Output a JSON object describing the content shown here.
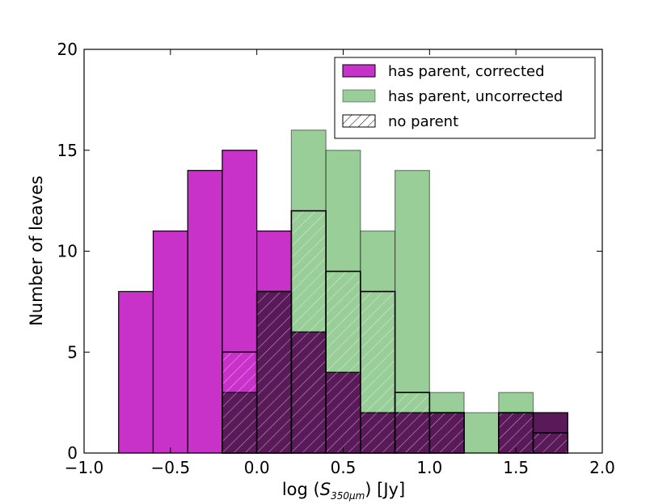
{
  "chart_data": {
    "type": "bar",
    "title": "",
    "xlabel_prefix": "log (",
    "xlabel_var": "S",
    "xlabel_sub": "350μm",
    "xlabel_suffix": ") [Jy]",
    "ylabel": "Number of leaves",
    "xlim": [
      -1.0,
      2.0
    ],
    "ylim": [
      0,
      20
    ],
    "x_ticks": [
      "−1.0",
      "−0.5",
      "0.0",
      "0.5",
      "1.0",
      "1.5",
      "2.0"
    ],
    "x_tick_values": [
      -1.0,
      -0.5,
      0.0,
      0.5,
      1.0,
      1.5,
      2.0
    ],
    "y_ticks": [
      "0",
      "5",
      "10",
      "15",
      "20"
    ],
    "y_tick_values": [
      0,
      5,
      10,
      15,
      20
    ],
    "legend_position": "top-right",
    "colors": {
      "corrected": "#c832c8",
      "uncorrected": "#7fc27f",
      "no_parent": "#5a1a5a",
      "edge": "#000000"
    },
    "series": [
      {
        "name": "has parent, corrected",
        "bins": [
          {
            "x0": -0.8,
            "x1": -0.6,
            "value": 8
          },
          {
            "x0": -0.6,
            "x1": -0.4,
            "value": 11
          },
          {
            "x0": -0.4,
            "x1": -0.2,
            "value": 14
          },
          {
            "x0": -0.2,
            "x1": 0.0,
            "value": 15
          },
          {
            "x0": 0.0,
            "x1": 0.2,
            "value": 11
          }
        ]
      },
      {
        "name": "has parent, uncorrected",
        "bins": [
          {
            "x0": -0.2,
            "x1": 0.0,
            "value": 3
          },
          {
            "x0": 0.0,
            "x1": 0.2,
            "value": 8
          },
          {
            "x0": 0.2,
            "x1": 0.4,
            "value": 16
          },
          {
            "x0": 0.4,
            "x1": 0.6,
            "value": 15
          },
          {
            "x0": 0.6,
            "x1": 0.8,
            "value": 11
          },
          {
            "x0": 0.8,
            "x1": 1.0,
            "value": 14
          },
          {
            "x0": 1.0,
            "x1": 1.2,
            "value": 3
          },
          {
            "x0": 1.2,
            "x1": 1.4,
            "value": 2
          },
          {
            "x0": 1.4,
            "x1": 1.6,
            "value": 3
          },
          {
            "x0": 1.6,
            "x1": 1.8,
            "value": 2
          }
        ]
      },
      {
        "name": "no parent",
        "bins": [
          {
            "x0": -0.2,
            "x1": 0.0,
            "value": 5
          },
          {
            "x0": 0.0,
            "x1": 0.2,
            "value": 8
          },
          {
            "x0": 0.2,
            "x1": 0.4,
            "value": 12
          },
          {
            "x0": 0.4,
            "x1": 0.6,
            "value": 9
          },
          {
            "x0": 0.6,
            "x1": 0.8,
            "value": 8
          },
          {
            "x0": 0.8,
            "x1": 1.0,
            "value": 3
          },
          {
            "x0": 1.0,
            "x1": 1.2,
            "value": 2
          },
          {
            "x0": 1.2,
            "x1": 1.4,
            "value": 0
          },
          {
            "x0": 1.4,
            "x1": 1.6,
            "value": 2
          },
          {
            "x0": 1.6,
            "x1": 1.8,
            "value": 1
          }
        ]
      }
    ],
    "dark_overlap_bins": [
      {
        "x0": -0.2,
        "x1": 0.0,
        "value": 3
      },
      {
        "x0": 0.0,
        "x1": 0.2,
        "value": 8
      },
      {
        "x0": 0.2,
        "x1": 0.4,
        "value": 6
      },
      {
        "x0": 0.4,
        "x1": 0.6,
        "value": 4
      },
      {
        "x0": 0.6,
        "x1": 0.8,
        "value": 2
      },
      {
        "x0": 0.8,
        "x1": 1.0,
        "value": 2
      },
      {
        "x0": 1.0,
        "x1": 1.2,
        "value": 2
      },
      {
        "x0": 1.4,
        "x1": 1.6,
        "value": 2
      },
      {
        "x0": 1.6,
        "x1": 1.8,
        "value": 2
      }
    ]
  }
}
